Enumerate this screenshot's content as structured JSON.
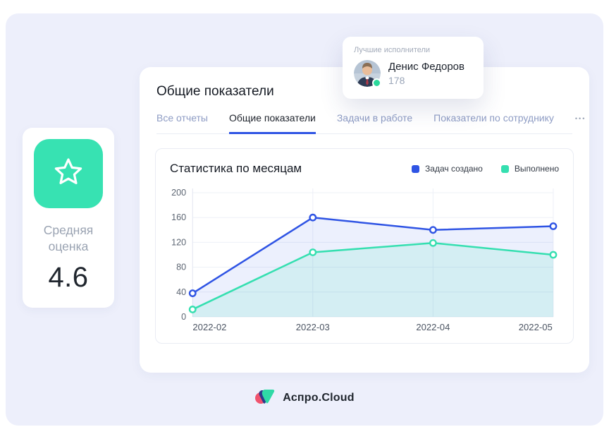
{
  "colors": {
    "accent_blue": "#2f54e4",
    "accent_green": "#35dfb0",
    "canvas_bg": "#edeffb",
    "status_dot": "#2bd89b",
    "rating_icon_bg": "#37e2b2"
  },
  "rating_card": {
    "label": "Средняя оценка",
    "value": "4.6",
    "icon": "star-icon"
  },
  "top_performers": {
    "title": "Лучшие исполнители",
    "name": "Денис Федоров",
    "count": "178"
  },
  "main": {
    "title": "Общие показатели",
    "tabs": [
      {
        "label": "Все отчеты",
        "active": false
      },
      {
        "label": "Общие показатели",
        "active": true
      },
      {
        "label": "Задачи в работе",
        "active": false
      },
      {
        "label": "Показатели по сотруднику",
        "active": false
      }
    ],
    "more_label": "•••"
  },
  "chart_data": {
    "type": "line",
    "title": "Статистика по месяцам",
    "categories": [
      "2022-02",
      "2022-03",
      "2022-04",
      "2022-05"
    ],
    "series": [
      {
        "name": "Задач создано",
        "color": "#2f54e4",
        "fill": "rgba(47,84,228,0.09)",
        "values": [
          38,
          160,
          140,
          146
        ]
      },
      {
        "name": "Выполнено",
        "color": "#35dfb0",
        "fill": "rgba(53,223,177,0.13)",
        "values": [
          12,
          104,
          119,
          100
        ]
      }
    ],
    "ylim": [
      0,
      200
    ],
    "yticks": [
      0,
      40,
      80,
      120,
      160,
      200
    ],
    "grid": true,
    "legend_position": "top-right"
  },
  "footer": {
    "logo_text": "Аспро.Cloud"
  }
}
